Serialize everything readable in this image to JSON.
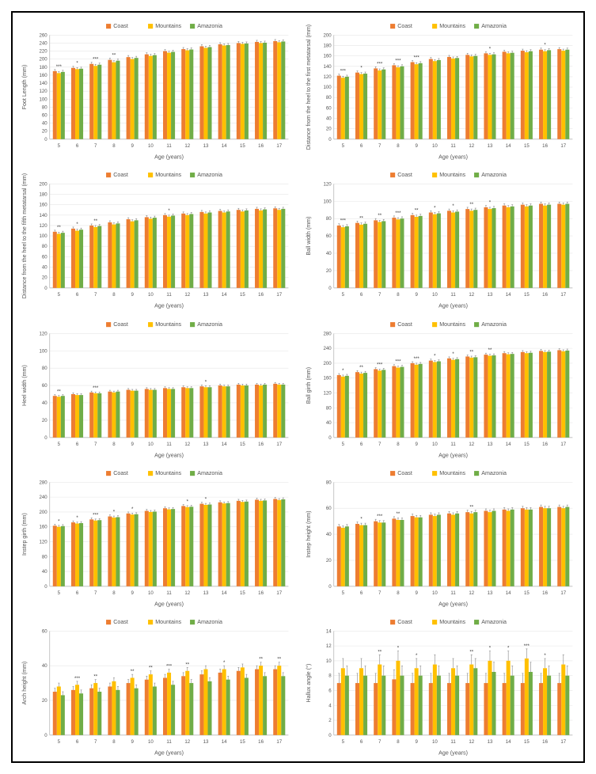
{
  "series": [
    {
      "name": "Coast",
      "color": "#ed7d31"
    },
    {
      "name": "Mountains",
      "color": "#ffc000"
    },
    {
      "name": "Amazonia",
      "color": "#70ad47"
    }
  ],
  "categories": [
    5,
    6,
    7,
    8,
    9,
    10,
    11,
    12,
    13,
    14,
    15,
    16,
    17
  ],
  "xlabel": "Age (years)",
  "background_color": "#ffffff",
  "grid_color": "#e6e6e6",
  "axis_color": "#bbbbbb",
  "label_fontsize": 7,
  "tick_fontsize": 6,
  "bar_group_gap": 0.35,
  "charts": [
    {
      "id": "foot-length",
      "ylabel": "Foot Length (mm)",
      "ylim": [
        0,
        260
      ],
      "ytick_step": 20,
      "values": {
        "Coast": [
          170,
          178,
          188,
          198,
          205,
          212,
          220,
          225,
          232,
          237,
          240,
          243,
          245
        ],
        "Mountains": [
          165,
          175,
          183,
          192,
          200,
          208,
          216,
          222,
          228,
          234,
          238,
          240,
          242
        ],
        "Amazonia": [
          168,
          176,
          186,
          196,
          203,
          210,
          218,
          224,
          230,
          235,
          239,
          241,
          244
        ]
      },
      "errors": [
        4,
        4,
        4,
        4,
        4,
        4,
        4,
        4,
        4,
        4,
        4,
        4,
        4
      ],
      "sig": {
        "5": "***",
        "6": "*",
        "7": "***",
        "8": "**"
      }
    },
    {
      "id": "heel-first-meta",
      "ylabel": "Distance from the heel to the first metatarsal (mm)",
      "ylim": [
        0,
        200
      ],
      "ytick_step": 20,
      "values": {
        "Coast": [
          122,
          128,
          136,
          142,
          148,
          154,
          158,
          162,
          165,
          168,
          170,
          172,
          173
        ],
        "Mountains": [
          118,
          125,
          132,
          138,
          144,
          150,
          155,
          159,
          162,
          165,
          167,
          169,
          170
        ],
        "Amazonia": [
          120,
          126,
          134,
          140,
          146,
          152,
          156,
          160,
          163,
          166,
          169,
          171,
          172
        ]
      },
      "errors": [
        3,
        3,
        3,
        3,
        3,
        3,
        3,
        3,
        3,
        3,
        3,
        3,
        3
      ],
      "sig": {
        "5": "***",
        "6": "*",
        "7": "***",
        "8": "***",
        "9": "***",
        "13": "*",
        "16": "*"
      }
    },
    {
      "id": "heel-fifth-meta",
      "ylabel": "Distance from the heel to the fifth metatarsal (mm)",
      "ylim": [
        0,
        200
      ],
      "ytick_step": 20,
      "values": {
        "Coast": [
          108,
          114,
          120,
          126,
          132,
          136,
          140,
          143,
          146,
          148,
          150,
          152,
          153
        ],
        "Mountains": [
          104,
          110,
          117,
          122,
          128,
          133,
          137,
          140,
          143,
          145,
          147,
          149,
          150
        ],
        "Amazonia": [
          106,
          112,
          119,
          124,
          130,
          135,
          139,
          142,
          145,
          147,
          149,
          151,
          152
        ]
      },
      "errors": [
        3,
        3,
        3,
        3,
        3,
        3,
        3,
        3,
        3,
        3,
        3,
        3,
        3
      ],
      "sig": {
        "5": "**",
        "6": "*",
        "7": "**",
        "11": "*"
      }
    },
    {
      "id": "ball-width",
      "ylabel": "Ball width (mm)",
      "ylim": [
        0,
        120
      ],
      "ytick_step": 20,
      "values": {
        "Coast": [
          72,
          75,
          78,
          81,
          84,
          87,
          89,
          91,
          93,
          95,
          96,
          97,
          97
        ],
        "Mountains": [
          70,
          73,
          76,
          79,
          82,
          85,
          87,
          89,
          91,
          93,
          94,
          95,
          96
        ],
        "Amazonia": [
          71,
          74,
          77,
          80,
          83,
          86,
          88,
          90,
          92,
          94,
          95,
          96,
          97
        ]
      },
      "errors": [
        2,
        2,
        2,
        2,
        2,
        2,
        2,
        2,
        2,
        2,
        2,
        2,
        2
      ],
      "sig": {
        "5": "***",
        "6": "**",
        "7": "**",
        "8": "***",
        "9": "**",
        "10": "*",
        "11": "*",
        "12": "**",
        "13": "*"
      }
    },
    {
      "id": "heel-width",
      "ylabel": "Heel width (mm)",
      "ylim": [
        0,
        120
      ],
      "ytick_step": 20,
      "values": {
        "Coast": [
          48,
          50,
          52,
          53,
          55,
          56,
          57,
          58,
          59,
          60,
          61,
          61,
          62
        ],
        "Mountains": [
          47,
          49,
          51,
          52,
          54,
          55,
          56,
          57,
          58,
          59,
          60,
          60,
          61
        ],
        "Amazonia": [
          48,
          49,
          51,
          53,
          54,
          55,
          56,
          57,
          58,
          59,
          60,
          61,
          61
        ]
      },
      "errors": [
        1.5,
        1.5,
        1.5,
        1.5,
        1.5,
        1.5,
        1.5,
        1.5,
        1.5,
        1.5,
        1.5,
        1.5,
        1.5
      ],
      "sig": {
        "5": "**",
        "7": "***",
        "13": "*"
      }
    },
    {
      "id": "ball-girth",
      "ylabel": "Ball girth (mm)",
      "ylim": [
        0,
        280
      ],
      "ytick_step": 40,
      "values": {
        "Coast": [
          168,
          176,
          184,
          192,
          200,
          207,
          213,
          218,
          223,
          227,
          230,
          233,
          235
        ],
        "Mountains": [
          164,
          172,
          180,
          188,
          196,
          203,
          209,
          215,
          220,
          224,
          227,
          230,
          232
        ],
        "Amazonia": [
          166,
          174,
          182,
          190,
          198,
          205,
          211,
          216,
          221,
          225,
          228,
          231,
          234
        ]
      },
      "errors": [
        4,
        4,
        4,
        4,
        4,
        4,
        4,
        4,
        4,
        4,
        4,
        4,
        4
      ],
      "sig": {
        "5": "*",
        "6": "**",
        "7": "***",
        "8": "***",
        "9": "***",
        "10": "*",
        "11": "*",
        "12": "**",
        "13": "**"
      }
    },
    {
      "id": "instep-girth",
      "ylabel": "Instep girth (mm)",
      "ylim": [
        0,
        280
      ],
      "ytick_step": 40,
      "values": {
        "Coast": [
          163,
          172,
          180,
          188,
          196,
          203,
          210,
          216,
          222,
          226,
          230,
          233,
          235
        ],
        "Mountains": [
          160,
          169,
          177,
          185,
          193,
          200,
          207,
          213,
          219,
          223,
          227,
          230,
          232
        ],
        "Amazonia": [
          162,
          170,
          178,
          186,
          194,
          201,
          208,
          214,
          220,
          224,
          228,
          231,
          234
        ]
      },
      "errors": [
        4,
        4,
        4,
        4,
        4,
        4,
        4,
        4,
        4,
        4,
        4,
        4,
        4
      ],
      "sig": {
        "5": "*",
        "6": "*",
        "7": "***",
        "8": "*",
        "9": "*",
        "12": "*",
        "13": "*"
      }
    },
    {
      "id": "instep-height",
      "ylabel": "Instep height (mm)",
      "ylim": [
        0,
        80
      ],
      "ytick_step": 20,
      "values": {
        "Coast": [
          46,
          48,
          50,
          52,
          54,
          55,
          56,
          57,
          58,
          59,
          60,
          61,
          61
        ],
        "Mountains": [
          45,
          47,
          49,
          51,
          53,
          54,
          55,
          56,
          57,
          58,
          59,
          60,
          60
        ],
        "Amazonia": [
          46,
          47,
          49,
          51,
          53,
          55,
          56,
          57,
          58,
          59,
          59,
          60,
          61
        ]
      },
      "errors": [
        1.5,
        1.5,
        1.5,
        1.5,
        1.5,
        1.5,
        1.5,
        1.5,
        1.5,
        1.5,
        1.5,
        1.5,
        1.5
      ],
      "sig": {
        "6": "*",
        "7": "***",
        "8": "**",
        "12": "**"
      }
    },
    {
      "id": "arch-height",
      "ylabel": "Arch height (mm)",
      "ylim": [
        0,
        60
      ],
      "ytick_step": 20,
      "values": {
        "Coast": [
          25,
          26,
          27,
          28,
          30,
          32,
          33,
          34,
          35,
          36,
          37,
          38,
          38
        ],
        "Mountains": [
          28,
          29,
          30,
          31,
          33,
          35,
          36,
          37,
          38,
          38,
          39,
          40,
          40
        ],
        "Amazonia": [
          23,
          24,
          25,
          26,
          27,
          28,
          29,
          30,
          31,
          32,
          33,
          34,
          34
        ]
      },
      "errors": [
        2,
        2,
        2,
        2,
        2,
        2,
        2,
        2,
        2,
        2,
        2,
        2,
        2
      ],
      "sig": {
        "6": "***",
        "7": "**",
        "9": "**",
        "10": "**",
        "11": "***",
        "12": "**",
        "14": "*",
        "16": "**",
        "17": "**"
      }
    },
    {
      "id": "hallux-angle",
      "ylabel": "Hallux angle (°)",
      "ylim": [
        0,
        14
      ],
      "ytick_step": 2,
      "values": {
        "Coast": [
          7,
          7,
          7,
          7.5,
          7,
          7,
          7,
          7,
          7,
          7,
          7,
          7,
          7
        ],
        "Mountains": [
          9,
          9,
          9.5,
          10,
          9,
          9.5,
          9,
          9.5,
          10,
          10,
          10.3,
          9,
          9.5
        ],
        "Amazonia": [
          8,
          8,
          8,
          8,
          8,
          8,
          8,
          9,
          8.5,
          8,
          8.5,
          8,
          8
        ]
      },
      "errors": [
        1.3,
        1.3,
        1.3,
        1.3,
        1.3,
        1.3,
        1.3,
        1.3,
        1.3,
        1.3,
        1.3,
        1.3,
        1.3
      ],
      "sig": {
        "7": "**",
        "8": "*",
        "9": "*",
        "12": "**",
        "13": "*",
        "14": "*",
        "15": "***",
        "16": "*"
      }
    }
  ]
}
